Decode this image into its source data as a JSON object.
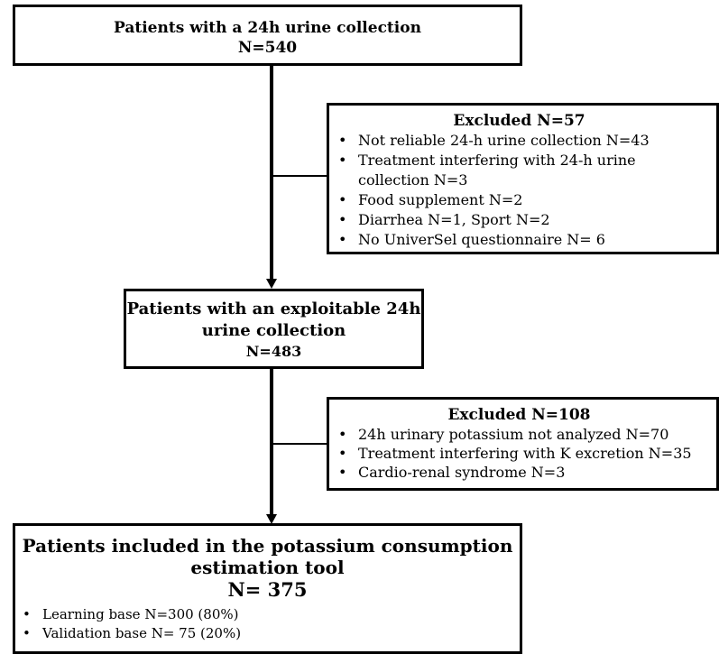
{
  "box1": {
    "title": "Patients with a 24h urine collection",
    "count": "N=540"
  },
  "excluded1": {
    "title": "Excluded N=57",
    "items": [
      "Not reliable 24-h urine collection N=43",
      "Treatment interfering with 24-h urine collection N=3",
      "Food supplement N=2",
      "Diarrhea N=1, Sport N=2",
      "No UniverSel questionnaire N= 6"
    ]
  },
  "box2": {
    "title_line1": "Patients with an exploitable 24h",
    "title_line2": "urine collection",
    "count": "N=483"
  },
  "excluded2": {
    "title": "Excluded N=108",
    "items": [
      "24h urinary potassium not analyzed N=70",
      "Treatment interfering with K excretion N=35",
      "Cardio-renal syndrome N=3"
    ]
  },
  "box3": {
    "title_line1": "Patients included in the potassium consumption",
    "title_line2": "estimation tool",
    "count": "N= 375",
    "items": [
      "Learning base N=300 (80%)",
      "Validation base N= 75 (20%)"
    ]
  }
}
